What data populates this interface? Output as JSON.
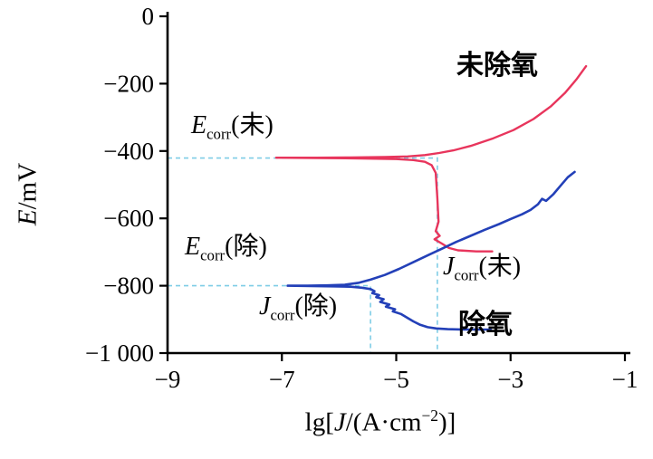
{
  "chart_data": {
    "type": "line",
    "title": "",
    "xlabel": {
      "pre": "lg[",
      "sym": "J",
      "mid": "/(A·cm",
      "sup": "−2",
      "post": ")]"
    },
    "ylabel": {
      "sym": "E",
      "rest": "/mV"
    },
    "axes": {
      "x": {
        "min": -9,
        "max": -1,
        "ticks": [
          -9,
          -7,
          -5,
          -3,
          -1
        ],
        "tick_labels": [
          "−9",
          "−7",
          "−5",
          "−3",
          "−1"
        ]
      },
      "y": {
        "min": -1000,
        "max": 0,
        "ticks": [
          0,
          -200,
          -400,
          -600,
          -800,
          -1000
        ],
        "tick_labels": [
          "0",
          "−200",
          "−400",
          "−600",
          "−800",
          "−1 000"
        ]
      }
    },
    "series": [
      {
        "name": "未除氧",
        "color": "#e8355c",
        "width": 2.4,
        "points": [
          [
            -1.68,
            -148
          ],
          [
            -1.85,
            -188
          ],
          [
            -2.05,
            -228
          ],
          [
            -2.3,
            -268
          ],
          [
            -2.6,
            -305
          ],
          [
            -2.95,
            -338
          ],
          [
            -3.3,
            -362
          ],
          [
            -3.7,
            -385
          ],
          [
            -4.0,
            -398
          ],
          [
            -4.25,
            -406
          ],
          [
            -4.5,
            -412
          ],
          [
            -4.8,
            -416
          ],
          [
            -5.2,
            -418
          ],
          [
            -5.8,
            -419
          ],
          [
            -6.4,
            -420
          ],
          [
            -7.1,
            -420
          ],
          [
            -6.4,
            -421
          ],
          [
            -5.6,
            -422
          ],
          [
            -5.0,
            -424
          ],
          [
            -4.7,
            -427
          ],
          [
            -4.5,
            -432
          ],
          [
            -4.38,
            -442
          ],
          [
            -4.31,
            -465
          ],
          [
            -4.28,
            -540
          ],
          [
            -4.26,
            -610
          ],
          [
            -4.31,
            -638
          ],
          [
            -4.24,
            -652
          ],
          [
            -4.33,
            -662
          ],
          [
            -4.2,
            -675
          ],
          [
            -4.08,
            -688
          ],
          [
            -3.92,
            -695
          ],
          [
            -3.6,
            -698
          ],
          [
            -3.32,
            -698
          ]
        ]
      },
      {
        "name": "除氧",
        "color": "#2340b8",
        "width": 2.6,
        "points": [
          [
            -1.88,
            -462
          ],
          [
            -2.0,
            -478
          ],
          [
            -2.12,
            -502
          ],
          [
            -2.25,
            -528
          ],
          [
            -2.38,
            -548
          ],
          [
            -2.45,
            -542
          ],
          [
            -2.52,
            -558
          ],
          [
            -2.65,
            -575
          ],
          [
            -2.8,
            -588
          ],
          [
            -3.0,
            -602
          ],
          [
            -3.2,
            -617
          ],
          [
            -3.45,
            -634
          ],
          [
            -3.7,
            -652
          ],
          [
            -3.95,
            -670
          ],
          [
            -4.2,
            -690
          ],
          [
            -4.45,
            -710
          ],
          [
            -4.7,
            -730
          ],
          [
            -4.95,
            -750
          ],
          [
            -5.2,
            -768
          ],
          [
            -5.45,
            -782
          ],
          [
            -5.65,
            -791
          ],
          [
            -5.9,
            -797
          ],
          [
            -6.2,
            -799
          ],
          [
            -6.55,
            -800
          ],
          [
            -6.9,
            -800
          ],
          [
            -6.5,
            -801
          ],
          [
            -6.1,
            -802
          ],
          [
            -5.8,
            -803
          ],
          [
            -5.6,
            -806
          ],
          [
            -5.45,
            -810
          ],
          [
            -5.38,
            -816
          ],
          [
            -5.42,
            -822
          ],
          [
            -5.3,
            -828
          ],
          [
            -5.35,
            -834
          ],
          [
            -5.22,
            -840
          ],
          [
            -5.28,
            -848
          ],
          [
            -5.12,
            -856
          ],
          [
            -5.18,
            -862
          ],
          [
            -5.02,
            -870
          ],
          [
            -5.06,
            -876
          ],
          [
            -4.92,
            -884
          ],
          [
            -4.8,
            -896
          ],
          [
            -4.7,
            -906
          ],
          [
            -4.58,
            -916
          ],
          [
            -4.45,
            -923
          ],
          [
            -4.3,
            -927
          ],
          [
            -4.1,
            -929
          ],
          [
            -3.85,
            -930
          ],
          [
            -3.6,
            -930
          ],
          [
            -3.35,
            -930
          ]
        ]
      }
    ],
    "guides": {
      "color": "#7fcde6",
      "dash": "5 4",
      "width": 1.6,
      "lines": [
        {
          "name": "guide-ecorr-jcorr-wei",
          "points": [
            [
              -9,
              -421
            ],
            [
              -4.28,
              -421
            ],
            [
              -4.28,
              -1000
            ]
          ]
        },
        {
          "name": "guide-ecorr-jcorr-chu",
          "points": [
            [
              -9,
              -800
            ],
            [
              -5.45,
              -800
            ],
            [
              -5.45,
              -1000
            ]
          ]
        }
      ]
    },
    "annotations": {
      "curve_top": "未除氧",
      "curve_bottom": "除氧",
      "ecorr_wei": {
        "sym": "E",
        "sub": "corr",
        "rest": "(未)"
      },
      "ecorr_chu": {
        "sym": "E",
        "sub": "corr",
        "rest": "(除)"
      },
      "jcorr_wei": {
        "sym": "J",
        "sub": "corr",
        "rest": "(未)"
      },
      "jcorr_chu": {
        "sym": "J",
        "sub": "corr",
        "rest": "(除)"
      }
    }
  }
}
